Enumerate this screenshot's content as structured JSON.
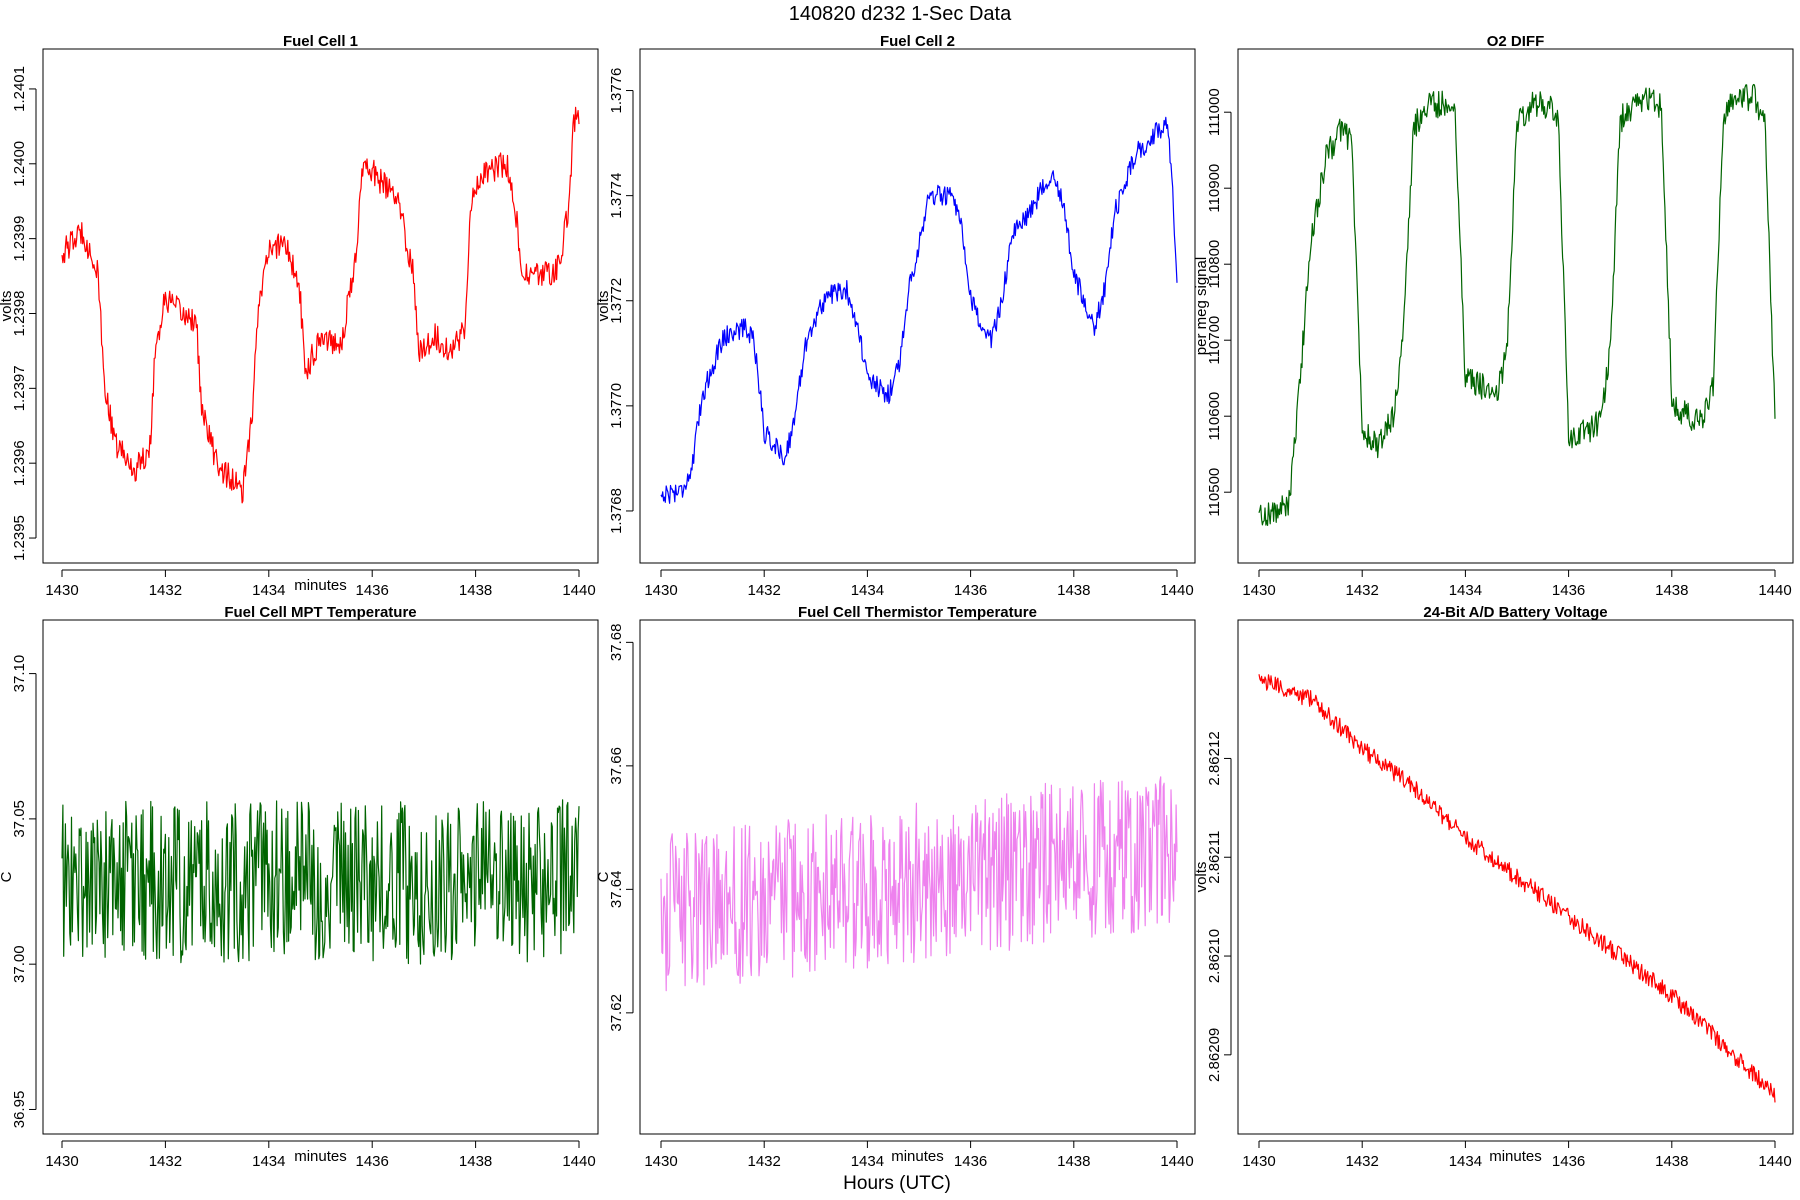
{
  "title": "140820   d232   1-Sec Data",
  "footer_xlabel": "Hours (UTC)",
  "chart_data": [
    {
      "type": "line",
      "title": "Fuel Cell 1",
      "xlabel": "minutes",
      "ylabel": "volts",
      "color": "#ff0000",
      "xlim": [
        1430,
        1440
      ],
      "ylim": [
        1.23948,
        1.24014
      ],
      "xticks": [
        1430,
        1432,
        1434,
        1436,
        1438,
        1440
      ],
      "xtick_labels": [
        "1430",
        "1432",
        "1434",
        "1436",
        "1438",
        "1440"
      ],
      "yticks": [
        1.2395,
        1.2396,
        1.2397,
        1.2398,
        1.2399,
        1.24,
        1.2401
      ],
      "ytick_labels": [
        "1.2395",
        "1.2396",
        "1.2397",
        "1.2398",
        "1.2399",
        "1.2400",
        "1.2401"
      ],
      "series": [
        {
          "x": [
            1430,
            1430.4,
            1430.7,
            1430.8,
            1431.0,
            1431.4,
            1431.7,
            1431.8,
            1432.0,
            1432.3,
            1432.6,
            1432.7,
            1433.0,
            1433.5,
            1433.7,
            1433.8,
            1434.0,
            1434.3,
            1434.6,
            1434.7,
            1435.0,
            1435.4,
            1435.7,
            1435.8,
            1436.0,
            1436.5,
            1436.8,
            1436.9,
            1437.2,
            1437.5,
            1437.8,
            1437.9,
            1438.2,
            1438.6,
            1438.8,
            1438.9,
            1439.2,
            1439.6,
            1439.8,
            1439.9,
            1440
          ],
          "y": [
            1.23988,
            1.23991,
            1.23985,
            1.23972,
            1.23963,
            1.23959,
            1.23962,
            1.23975,
            1.23982,
            1.2398,
            1.23979,
            1.23967,
            1.2396,
            1.23956,
            1.23968,
            1.23982,
            1.23988,
            1.2399,
            1.23983,
            1.23972,
            1.23977,
            1.23976,
            1.23988,
            1.24,
            1.23999,
            1.23995,
            1.23985,
            1.23975,
            1.23977,
            1.23975,
            1.23978,
            1.23995,
            1.23999,
            1.24,
            1.23992,
            1.23985,
            1.23985,
            1.23986,
            1.23994,
            1.24006,
            1.24006
          ],
          "noise": 1.8e-05
        }
      ]
    },
    {
      "type": "line",
      "title": "Fuel Cell 2",
      "xlabel": "",
      "ylabel": "volts",
      "color": "#0000ff",
      "xlim": [
        1430,
        1440
      ],
      "ylim": [
        1.37672,
        1.37766
      ],
      "xticks": [
        1430,
        1432,
        1434,
        1436,
        1438,
        1440
      ],
      "xtick_labels": [
        "1430",
        "1432",
        "1434",
        "1436",
        "1438",
        "1440"
      ],
      "yticks": [
        1.3768,
        1.377,
        1.3772,
        1.3774,
        1.3776
      ],
      "ytick_labels": [
        "1.3768",
        "1.3770",
        "1.3772",
        "1.3774",
        "1.3776"
      ],
      "series": [
        {
          "x": [
            1430,
            1430.4,
            1430.6,
            1430.8,
            1431.2,
            1431.6,
            1431.8,
            1432.0,
            1432.4,
            1432.6,
            1432.8,
            1433.2,
            1433.6,
            1433.8,
            1434.0,
            1434.4,
            1434.6,
            1434.8,
            1435.2,
            1435.6,
            1435.8,
            1436.0,
            1436.4,
            1436.6,
            1436.8,
            1437.2,
            1437.6,
            1437.8,
            1438.0,
            1438.4,
            1438.6,
            1438.8,
            1439.2,
            1439.6,
            1439.8,
            1439.9,
            1440
          ],
          "y": [
            1.37683,
            1.37684,
            1.37688,
            1.37702,
            1.37713,
            1.37715,
            1.37713,
            1.37695,
            1.3769,
            1.37698,
            1.37712,
            1.37721,
            1.37722,
            1.37716,
            1.37705,
            1.37702,
            1.37707,
            1.37722,
            1.3774,
            1.3774,
            1.37735,
            1.3772,
            1.37712,
            1.3772,
            1.37732,
            1.37738,
            1.37745,
            1.37738,
            1.37725,
            1.37715,
            1.37722,
            1.37737,
            1.37748,
            1.37752,
            1.37754,
            1.37745,
            1.37722
          ],
          "noise": 2e-05
        }
      ]
    },
    {
      "type": "line",
      "title": "O2 DIFF",
      "xlabel": "",
      "ylabel": "per meg signal",
      "color": "#006400",
      "xlim": [
        1430,
        1440
      ],
      "ylim": [
        110420,
        111070
      ],
      "xticks": [
        1430,
        1432,
        1434,
        1436,
        1438,
        1440
      ],
      "xtick_labels": [
        "1430",
        "1432",
        "1434",
        "1436",
        "1438",
        "1440"
      ],
      "yticks": [
        110500,
        110600,
        110700,
        110800,
        110900,
        111000
      ],
      "ytick_labels": [
        "110500",
        "110600",
        "110700",
        "110800",
        "110900",
        "111000"
      ],
      "series": [
        {
          "x": [
            1430,
            1430.4,
            1430.6,
            1430.8,
            1431.0,
            1431.3,
            1431.6,
            1431.8,
            1432.0,
            1432.3,
            1432.6,
            1432.8,
            1433.0,
            1433.3,
            1433.6,
            1433.8,
            1434.0,
            1434.3,
            1434.6,
            1434.8,
            1435.0,
            1435.3,
            1435.6,
            1435.8,
            1436.0,
            1436.3,
            1436.6,
            1436.8,
            1437.0,
            1437.3,
            1437.6,
            1437.8,
            1438.0,
            1438.3,
            1438.6,
            1438.8,
            1439.0,
            1439.3,
            1439.6,
            1439.8,
            1440
          ],
          "y": [
            110470,
            110475,
            110490,
            110650,
            110830,
            110940,
            110980,
            110960,
            110580,
            110560,
            110600,
            110710,
            110980,
            111010,
            111010,
            111005,
            110650,
            110640,
            110630,
            110680,
            110990,
            111010,
            111010,
            110990,
            110570,
            110580,
            110590,
            110680,
            110990,
            111010,
            111020,
            111005,
            110620,
            110600,
            110590,
            110640,
            111000,
            111020,
            111020,
            110990,
            110600
          ],
          "noise": 18
        }
      ]
    },
    {
      "type": "line",
      "title": "Fuel Cell MPT Temperature",
      "xlabel": "minutes",
      "ylabel": "C",
      "color": "#006400",
      "xlim": [
        1430,
        1440
      ],
      "ylim": [
        36.945,
        37.115
      ],
      "xticks": [
        1430,
        1432,
        1434,
        1436,
        1438,
        1440
      ],
      "xtick_labels": [
        "1430",
        "1432",
        "1434",
        "1436",
        "1438",
        "1440"
      ],
      "yticks": [
        36.95,
        37.0,
        37.05,
        37.1
      ],
      "ytick_labels": [
        "36.95",
        "37.00",
        "37.05",
        "37.10"
      ],
      "series": [
        {
          "x": [
            1430,
            1432,
            1434,
            1436,
            1438,
            1440
          ],
          "y": [
            37.028,
            37.028,
            37.029,
            37.028,
            37.028,
            37.029
          ],
          "noise": 0.028
        }
      ]
    },
    {
      "type": "line",
      "title": "Fuel Cell Thermistor Temperature",
      "xlabel": "minutes",
      "ylabel": "C",
      "color": "#ee82ee",
      "xlim": [
        1430,
        1440
      ],
      "ylim": [
        37.602,
        37.682
      ],
      "xticks": [
        1430,
        1432,
        1434,
        1436,
        1438,
        1440
      ],
      "xtick_labels": [
        "1430",
        "1432",
        "1434",
        "1436",
        "1438",
        "1440"
      ],
      "yticks": [
        37.62,
        37.64,
        37.66,
        37.68
      ],
      "ytick_labels": [
        "37.62",
        "37.64",
        "37.66",
        "37.68"
      ],
      "series": [
        {
          "x": [
            1430,
            1432,
            1434,
            1436,
            1438,
            1440
          ],
          "y": [
            37.636,
            37.638,
            37.64,
            37.642,
            37.645,
            37.646
          ],
          "noise": 0.013
        }
      ]
    },
    {
      "type": "line",
      "title": "24-Bit A/D Battery Voltage",
      "xlabel": "minutes",
      "ylabel": "volts",
      "color": "#ff0000",
      "xlim": [
        1430,
        1440
      ],
      "ylim": [
        2.862083,
        2.862133
      ],
      "xticks": [
        1430,
        1432,
        1434,
        1436,
        1438,
        1440
      ],
      "xtick_labels": [
        "1430",
        "1432",
        "1434",
        "1436",
        "1438",
        "1440"
      ],
      "yticks": [
        2.86209,
        2.8621,
        2.86211,
        2.86212
      ],
      "ytick_labels": [
        "2.86209",
        "2.86210",
        "2.86211",
        "2.86212"
      ],
      "series": [
        {
          "x": [
            1430,
            1431,
            1432,
            1433,
            1434,
            1435,
            1436,
            1437,
            1438,
            1439,
            1440
          ],
          "y": [
            2.862128,
            2.862126,
            2.862121,
            2.862117,
            2.862112,
            2.862108,
            2.862104,
            2.8621,
            2.862096,
            2.862091,
            2.862086
          ],
          "noise": 9e-07
        }
      ]
    }
  ]
}
